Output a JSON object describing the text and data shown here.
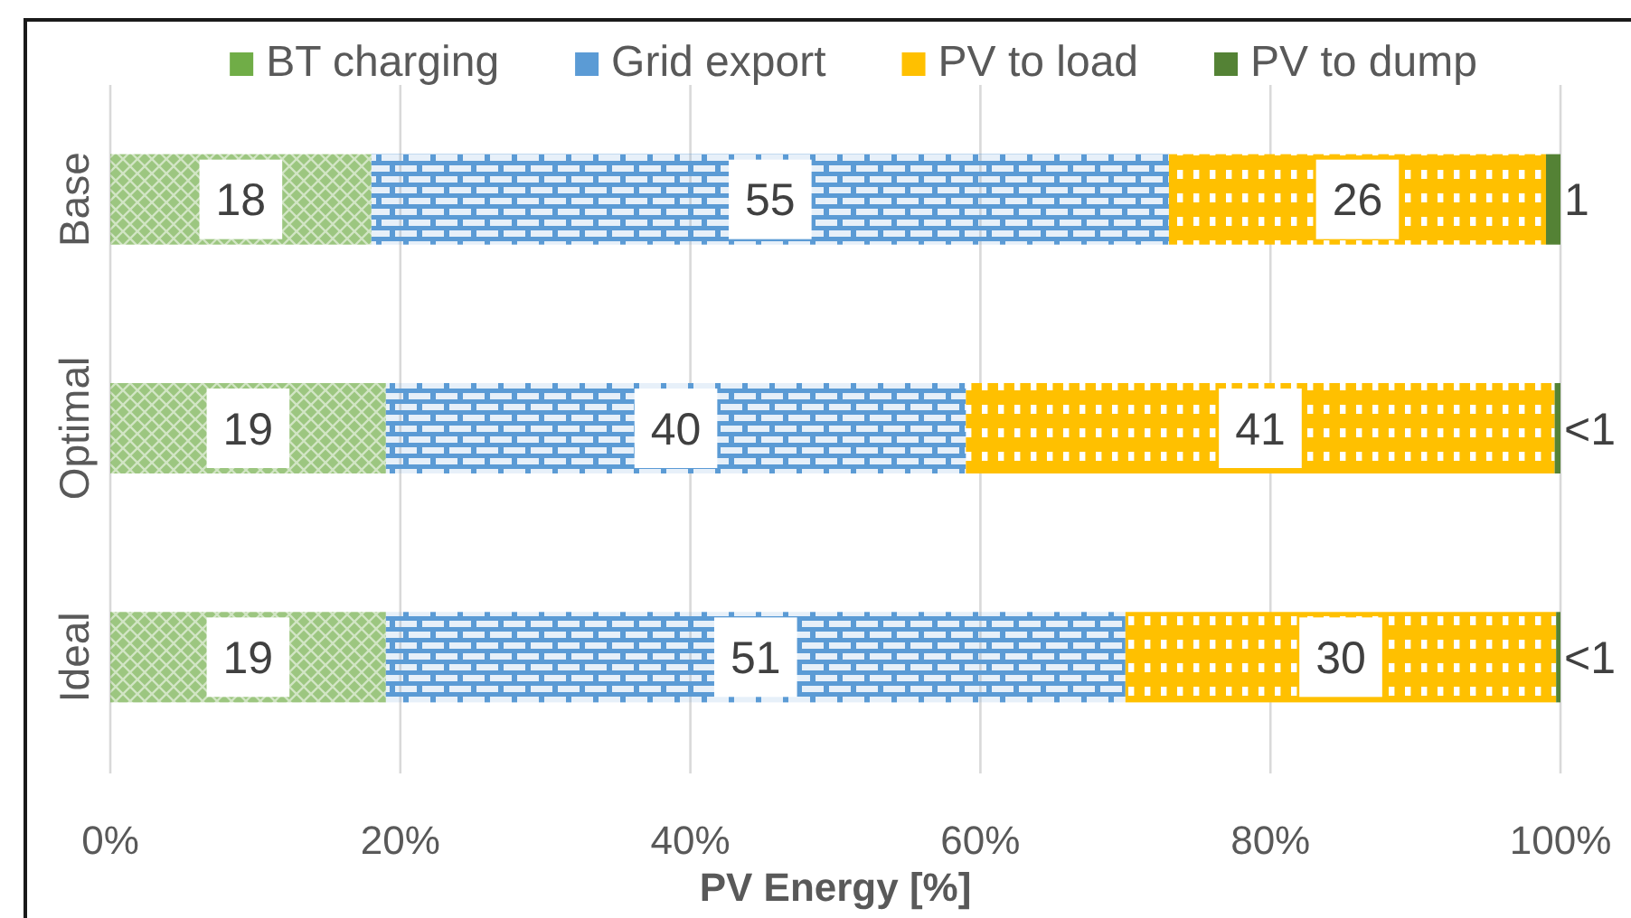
{
  "chart_data": {
    "type": "bar",
    "orientation": "horizontal",
    "stacked": true,
    "categories": [
      "Base",
      "Optimal",
      "Ideal"
    ],
    "series": [
      {
        "name": "BT charging",
        "color": "#70ad47",
        "values": [
          18,
          19,
          19
        ],
        "value_labels": [
          "18",
          "19",
          "19"
        ]
      },
      {
        "name": "Grid export",
        "color": "#5b9bd5",
        "values": [
          55,
          40,
          51
        ],
        "value_labels": [
          "55",
          "40",
          "51"
        ]
      },
      {
        "name": "PV to load",
        "color": "#ffc000",
        "values": [
          26,
          40.6,
          29.7
        ],
        "value_labels": [
          "26",
          "41",
          "30"
        ]
      },
      {
        "name": "PV to dump",
        "color": "#548235",
        "values": [
          1,
          0.4,
          0.3
        ],
        "value_labels": [
          "1",
          "<1",
          "<1"
        ]
      }
    ],
    "xlim": [
      0,
      100
    ],
    "xticks": [
      {
        "value": 0,
        "label": "0%"
      },
      {
        "value": 20,
        "label": "20%"
      },
      {
        "value": 40,
        "label": "40%"
      },
      {
        "value": 60,
        "label": "60%"
      },
      {
        "value": 80,
        "label": "80%"
      },
      {
        "value": 100,
        "label": "100%"
      }
    ],
    "xlabel": "PV Energy [%]",
    "grid": "x",
    "legend": "top"
  }
}
